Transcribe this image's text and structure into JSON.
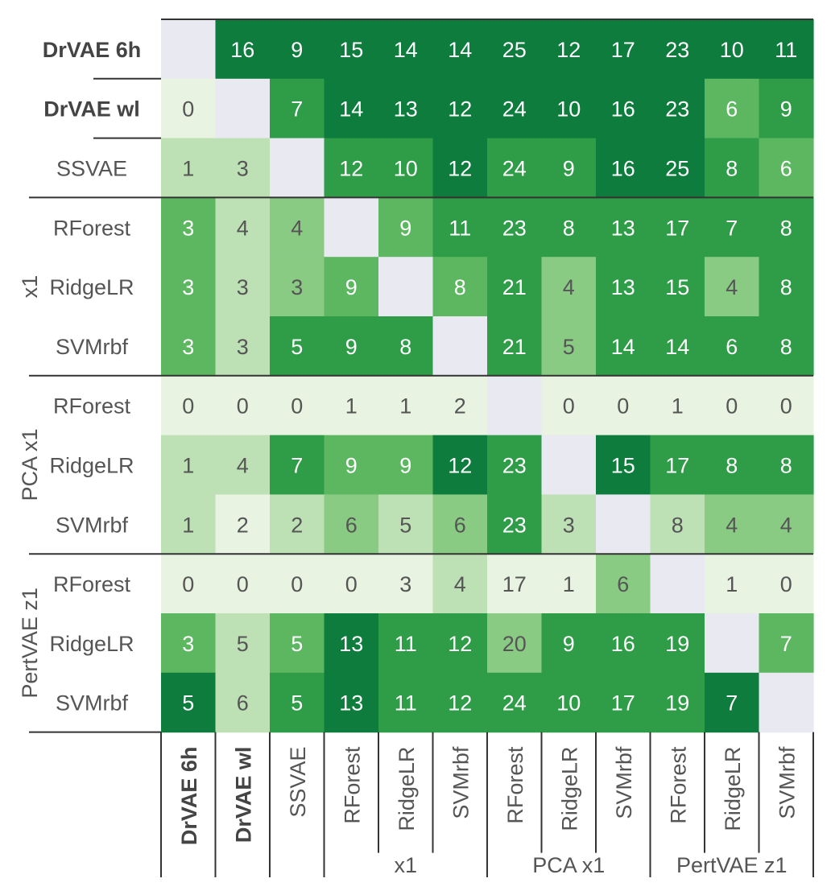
{
  "chart_data": {
    "type": "heatmap",
    "row_labels": [
      "DrVAE 6h",
      "DrVAE wl",
      "SSVAE",
      "RForest",
      "RidgeLR",
      "SVMrbf",
      "RForest",
      "RidgeLR",
      "SVMrbf",
      "RForest",
      "RidgeLR",
      "SVMrbf"
    ],
    "col_labels": [
      "DrVAE 6h",
      "DrVAE wl",
      "SSVAE",
      "RForest",
      "RidgeLR",
      "SVMrbf",
      "RForest",
      "RidgeLR",
      "SVMrbf",
      "RForest",
      "RidgeLR",
      "SVMrbf"
    ],
    "bold_labels": [
      "DrVAE 6h",
      "DrVAE wl"
    ],
    "groups": [
      {
        "name": "x1",
        "start": 3,
        "end": 5
      },
      {
        "name": "PCA x1",
        "start": 6,
        "end": 8
      },
      {
        "name": "PertVAE z1",
        "start": 9,
        "end": 11
      }
    ],
    "values": [
      [
        null,
        16,
        9,
        15,
        14,
        14,
        25,
        12,
        17,
        23,
        10,
        11
      ],
      [
        0,
        null,
        7,
        14,
        13,
        12,
        24,
        10,
        16,
        23,
        6,
        9
      ],
      [
        1,
        3,
        null,
        12,
        10,
        12,
        24,
        9,
        16,
        25,
        8,
        6
      ],
      [
        3,
        4,
        4,
        null,
        9,
        11,
        23,
        8,
        13,
        17,
        7,
        8
      ],
      [
        3,
        3,
        3,
        9,
        null,
        8,
        21,
        4,
        13,
        15,
        4,
        8
      ],
      [
        3,
        3,
        5,
        9,
        8,
        null,
        21,
        5,
        14,
        14,
        6,
        8
      ],
      [
        0,
        0,
        0,
        1,
        1,
        2,
        null,
        0,
        0,
        1,
        0,
        0
      ],
      [
        1,
        4,
        7,
        9,
        9,
        12,
        23,
        null,
        15,
        17,
        8,
        8
      ],
      [
        1,
        2,
        2,
        6,
        5,
        6,
        23,
        3,
        null,
        8,
        4,
        4
      ],
      [
        0,
        0,
        0,
        0,
        3,
        4,
        17,
        1,
        6,
        null,
        1,
        0
      ],
      [
        3,
        5,
        5,
        13,
        11,
        12,
        20,
        9,
        16,
        19,
        null,
        7
      ],
      [
        5,
        6,
        5,
        13,
        11,
        12,
        24,
        10,
        17,
        19,
        7,
        null
      ]
    ],
    "cell_levels": [
      [
        null,
        5,
        5,
        5,
        5,
        5,
        5,
        5,
        5,
        5,
        5,
        5
      ],
      [
        0,
        null,
        4,
        5,
        5,
        5,
        5,
        5,
        5,
        5,
        3,
        4
      ],
      [
        1,
        1,
        null,
        4,
        4,
        5,
        4,
        4,
        5,
        5,
        4,
        3
      ],
      [
        3,
        1,
        2,
        null,
        3,
        4,
        4,
        4,
        4,
        4,
        4,
        4
      ],
      [
        3,
        1,
        2,
        3,
        null,
        3,
        4,
        2,
        4,
        4,
        2,
        4
      ],
      [
        3,
        1,
        4,
        4,
        4,
        null,
        4,
        2,
        4,
        4,
        4,
        4
      ],
      [
        0,
        0,
        0,
        0,
        0,
        0,
        null,
        0,
        0,
        0,
        0,
        0
      ],
      [
        1,
        1,
        4,
        3,
        3,
        5,
        4,
        null,
        5,
        4,
        4,
        4
      ],
      [
        1,
        0,
        1,
        2,
        1,
        2,
        4,
        1,
        null,
        1,
        2,
        2
      ],
      [
        0,
        0,
        0,
        0,
        0,
        1,
        0,
        0,
        2,
        null,
        0,
        0
      ],
      [
        3,
        1,
        3,
        5,
        4,
        4,
        2,
        4,
        4,
        4,
        null,
        3
      ],
      [
        5,
        1,
        4,
        5,
        4,
        4,
        4,
        4,
        4,
        4,
        5,
        null
      ]
    ],
    "colors": {
      "level_0": "#e8f3e1",
      "level_1": "#bde0b5",
      "level_2": "#8acb84",
      "level_3": "#5db760",
      "level_4": "#2f9c48",
      "level_5": "#0d7c3d",
      "diagonal": "#e9e9f2",
      "dark_text": "#555555",
      "light_text": "#ffffff"
    }
  }
}
